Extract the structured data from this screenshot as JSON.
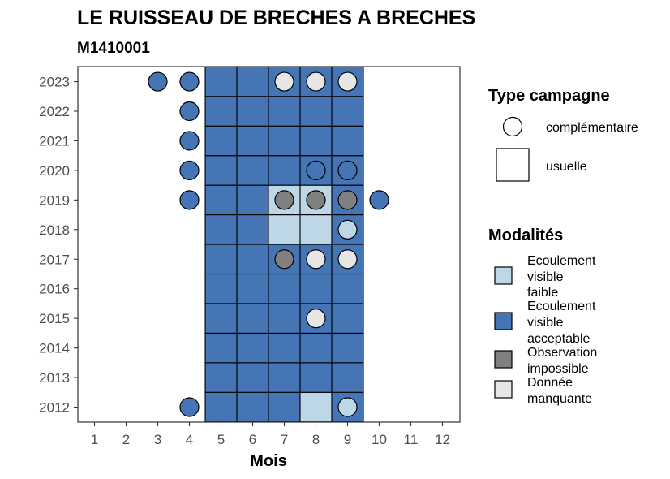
{
  "chart_data": {
    "type": "heatmap",
    "title": "LE RUISSEAU DE BRECHES A BRECHES",
    "subtitle": "M1410001",
    "xlabel": "Mois",
    "ylabel": "",
    "x_ticks": [
      "1",
      "2",
      "3",
      "4",
      "5",
      "6",
      "7",
      "8",
      "9",
      "10",
      "11",
      "12"
    ],
    "y_ticks": [
      "2012",
      "2013",
      "2014",
      "2015",
      "2016",
      "2017",
      "2018",
      "2019",
      "2020",
      "2021",
      "2022",
      "2023"
    ],
    "colors": {
      "faible": "#bdd7e7",
      "acceptable": "#4575b4",
      "impossible": "#808080",
      "manquante": "#e6e6e6"
    },
    "legend_type": {
      "title": "Type campagne",
      "items": [
        {
          "label": "complémentaire",
          "shape": "circle"
        },
        {
          "label": "usuelle",
          "shape": "square"
        }
      ]
    },
    "legend_modalites": {
      "title": "Modalités",
      "items": [
        {
          "key": "faible",
          "lines": [
            "Ecoulement",
            "visible",
            "faible"
          ]
        },
        {
          "key": "acceptable",
          "lines": [
            "Ecoulement",
            "visible",
            "acceptable"
          ]
        },
        {
          "key": "impossible",
          "lines": [
            "Observation",
            "impossible"
          ]
        },
        {
          "key": "manquante",
          "lines": [
            "Donnée",
            "manquante"
          ]
        }
      ]
    },
    "squares": [
      {
        "year": 2012,
        "month": 5,
        "m": "acceptable"
      },
      {
        "year": 2012,
        "month": 6,
        "m": "acceptable"
      },
      {
        "year": 2012,
        "month": 7,
        "m": "acceptable"
      },
      {
        "year": 2012,
        "month": 8,
        "m": "faible"
      },
      {
        "year": 2012,
        "month": 9,
        "m": "acceptable"
      },
      {
        "year": 2013,
        "month": 5,
        "m": "acceptable"
      },
      {
        "year": 2013,
        "month": 6,
        "m": "acceptable"
      },
      {
        "year": 2013,
        "month": 7,
        "m": "acceptable"
      },
      {
        "year": 2013,
        "month": 8,
        "m": "acceptable"
      },
      {
        "year": 2013,
        "month": 9,
        "m": "acceptable"
      },
      {
        "year": 2014,
        "month": 5,
        "m": "acceptable"
      },
      {
        "year": 2014,
        "month": 6,
        "m": "acceptable"
      },
      {
        "year": 2014,
        "month": 7,
        "m": "acceptable"
      },
      {
        "year": 2014,
        "month": 8,
        "m": "acceptable"
      },
      {
        "year": 2014,
        "month": 9,
        "m": "acceptable"
      },
      {
        "year": 2015,
        "month": 5,
        "m": "acceptable"
      },
      {
        "year": 2015,
        "month": 6,
        "m": "acceptable"
      },
      {
        "year": 2015,
        "month": 7,
        "m": "acceptable"
      },
      {
        "year": 2015,
        "month": 8,
        "m": "acceptable"
      },
      {
        "year": 2015,
        "month": 9,
        "m": "acceptable"
      },
      {
        "year": 2016,
        "month": 5,
        "m": "acceptable"
      },
      {
        "year": 2016,
        "month": 6,
        "m": "acceptable"
      },
      {
        "year": 2016,
        "month": 7,
        "m": "acceptable"
      },
      {
        "year": 2016,
        "month": 8,
        "m": "acceptable"
      },
      {
        "year": 2016,
        "month": 9,
        "m": "acceptable"
      },
      {
        "year": 2017,
        "month": 5,
        "m": "acceptable"
      },
      {
        "year": 2017,
        "month": 6,
        "m": "acceptable"
      },
      {
        "year": 2017,
        "month": 7,
        "m": "acceptable"
      },
      {
        "year": 2017,
        "month": 8,
        "m": "acceptable"
      },
      {
        "year": 2017,
        "month": 9,
        "m": "acceptable"
      },
      {
        "year": 2018,
        "month": 5,
        "m": "acceptable"
      },
      {
        "year": 2018,
        "month": 6,
        "m": "acceptable"
      },
      {
        "year": 2018,
        "month": 7,
        "m": "faible"
      },
      {
        "year": 2018,
        "month": 8,
        "m": "faible"
      },
      {
        "year": 2018,
        "month": 9,
        "m": "acceptable"
      },
      {
        "year": 2019,
        "month": 5,
        "m": "acceptable"
      },
      {
        "year": 2019,
        "month": 6,
        "m": "acceptable"
      },
      {
        "year": 2019,
        "month": 7,
        "m": "faible"
      },
      {
        "year": 2019,
        "month": 8,
        "m": "faible"
      },
      {
        "year": 2019,
        "month": 9,
        "m": "acceptable"
      },
      {
        "year": 2020,
        "month": 5,
        "m": "acceptable"
      },
      {
        "year": 2020,
        "month": 6,
        "m": "acceptable"
      },
      {
        "year": 2020,
        "month": 7,
        "m": "acceptable"
      },
      {
        "year": 2020,
        "month": 8,
        "m": "acceptable"
      },
      {
        "year": 2020,
        "month": 9,
        "m": "acceptable"
      },
      {
        "year": 2021,
        "month": 5,
        "m": "acceptable"
      },
      {
        "year": 2021,
        "month": 6,
        "m": "acceptable"
      },
      {
        "year": 2021,
        "month": 7,
        "m": "acceptable"
      },
      {
        "year": 2021,
        "month": 8,
        "m": "acceptable"
      },
      {
        "year": 2021,
        "month": 9,
        "m": "acceptable"
      },
      {
        "year": 2022,
        "month": 5,
        "m": "acceptable"
      },
      {
        "year": 2022,
        "month": 6,
        "m": "acceptable"
      },
      {
        "year": 2022,
        "month": 7,
        "m": "acceptable"
      },
      {
        "year": 2022,
        "month": 8,
        "m": "acceptable"
      },
      {
        "year": 2022,
        "month": 9,
        "m": "acceptable"
      },
      {
        "year": 2023,
        "month": 5,
        "m": "acceptable"
      },
      {
        "year": 2023,
        "month": 6,
        "m": "acceptable"
      },
      {
        "year": 2023,
        "month": 7,
        "m": "acceptable"
      },
      {
        "year": 2023,
        "month": 8,
        "m": "acceptable"
      },
      {
        "year": 2023,
        "month": 9,
        "m": "acceptable"
      }
    ],
    "circles": [
      {
        "year": 2023,
        "month": 3,
        "m": "acceptable"
      },
      {
        "year": 2023,
        "month": 4,
        "m": "acceptable"
      },
      {
        "year": 2023,
        "month": 7,
        "m": "manquante"
      },
      {
        "year": 2023,
        "month": 8,
        "m": "manquante"
      },
      {
        "year": 2023,
        "month": 9,
        "m": "manquante"
      },
      {
        "year": 2022,
        "month": 4,
        "m": "acceptable"
      },
      {
        "year": 2021,
        "month": 4,
        "m": "acceptable"
      },
      {
        "year": 2020,
        "month": 4,
        "m": "acceptable"
      },
      {
        "year": 2020,
        "month": 8,
        "m": "acceptable"
      },
      {
        "year": 2020,
        "month": 9,
        "m": "acceptable"
      },
      {
        "year": 2019,
        "month": 4,
        "m": "acceptable"
      },
      {
        "year": 2019,
        "month": 7,
        "m": "impossible"
      },
      {
        "year": 2019,
        "month": 8,
        "m": "impossible"
      },
      {
        "year": 2019,
        "month": 9,
        "m": "impossible"
      },
      {
        "year": 2019,
        "month": 10,
        "m": "acceptable"
      },
      {
        "year": 2018,
        "month": 9,
        "m": "faible"
      },
      {
        "year": 2017,
        "month": 7,
        "m": "impossible"
      },
      {
        "year": 2017,
        "month": 8,
        "m": "manquante"
      },
      {
        "year": 2017,
        "month": 9,
        "m": "manquante"
      },
      {
        "year": 2015,
        "month": 8,
        "m": "manquante"
      },
      {
        "year": 2012,
        "month": 4,
        "m": "acceptable"
      },
      {
        "year": 2012,
        "month": 9,
        "m": "faible"
      }
    ]
  }
}
